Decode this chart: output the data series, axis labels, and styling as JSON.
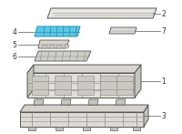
{
  "bg_color": "#ffffff",
  "line_color": "#888888",
  "dark_line": "#555555",
  "highlight_color": "#5bc8e8",
  "label_color": "#333333",
  "fig_w": 2.0,
  "fig_h": 1.47,
  "dpi": 100
}
